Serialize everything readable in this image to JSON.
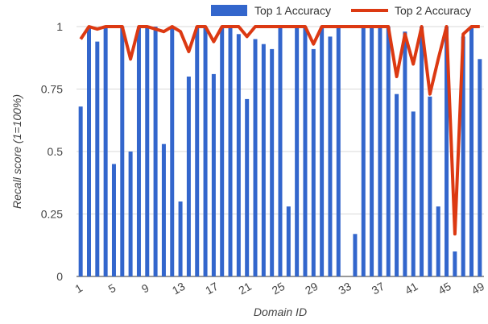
{
  "chart_data": {
    "type": "bar",
    "title": "",
    "xlabel": "Domain ID",
    "ylabel": "Recall score (1=100%)",
    "ylim": [
      0,
      1
    ],
    "yticks": [
      "0",
      "0.25",
      "0.5",
      "0.75",
      "1"
    ],
    "xticks": [
      "1",
      "5",
      "9",
      "13",
      "17",
      "21",
      "25",
      "29",
      "33",
      "37",
      "41",
      "45",
      "49"
    ],
    "grid": "horizontal",
    "legend_position": "top-right",
    "categories": [
      1,
      2,
      3,
      4,
      5,
      6,
      7,
      8,
      9,
      10,
      11,
      12,
      13,
      14,
      15,
      16,
      17,
      18,
      19,
      20,
      21,
      22,
      23,
      24,
      25,
      26,
      27,
      28,
      29,
      30,
      31,
      32,
      33,
      34,
      35,
      36,
      37,
      38,
      39,
      40,
      41,
      42,
      43,
      44,
      45,
      46,
      47,
      48,
      49
    ],
    "series": [
      {
        "name": "Top 1 Accuracy",
        "type": "bar",
        "color": "#3366cc",
        "values": [
          0.68,
          1.0,
          0.94,
          1.0,
          0.45,
          1.0,
          0.5,
          1.0,
          1.0,
          1.0,
          0.53,
          1.0,
          0.3,
          0.8,
          1.0,
          1.0,
          0.81,
          1.0,
          1.0,
          0.97,
          0.71,
          0.95,
          0.93,
          0.91,
          1.0,
          0.28,
          1.0,
          1.0,
          0.91,
          1.0,
          0.96,
          1.0,
          0.0,
          0.17,
          1.0,
          1.0,
          1.0,
          1.0,
          0.73,
          0.98,
          0.66,
          1.0,
          0.72,
          0.28,
          1.0,
          0.1,
          0.96,
          1.0,
          0.87
        ]
      },
      {
        "name": "Top 2 Accuracy",
        "type": "line",
        "color": "#dc3912",
        "values": [
          0.95,
          1.0,
          0.99,
          1.0,
          1.0,
          1.0,
          0.87,
          1.0,
          1.0,
          0.99,
          0.98,
          1.0,
          0.98,
          0.9,
          1.0,
          1.0,
          0.94,
          1.0,
          1.0,
          1.0,
          0.96,
          1.0,
          1.0,
          1.0,
          1.0,
          1.0,
          1.0,
          1.0,
          0.93,
          1.0,
          1.0,
          1.0,
          1.0,
          1.0,
          1.0,
          1.0,
          1.0,
          1.0,
          0.8,
          0.97,
          0.85,
          1.0,
          0.73,
          0.87,
          1.0,
          0.17,
          0.97,
          1.0,
          1.0
        ]
      }
    ]
  }
}
